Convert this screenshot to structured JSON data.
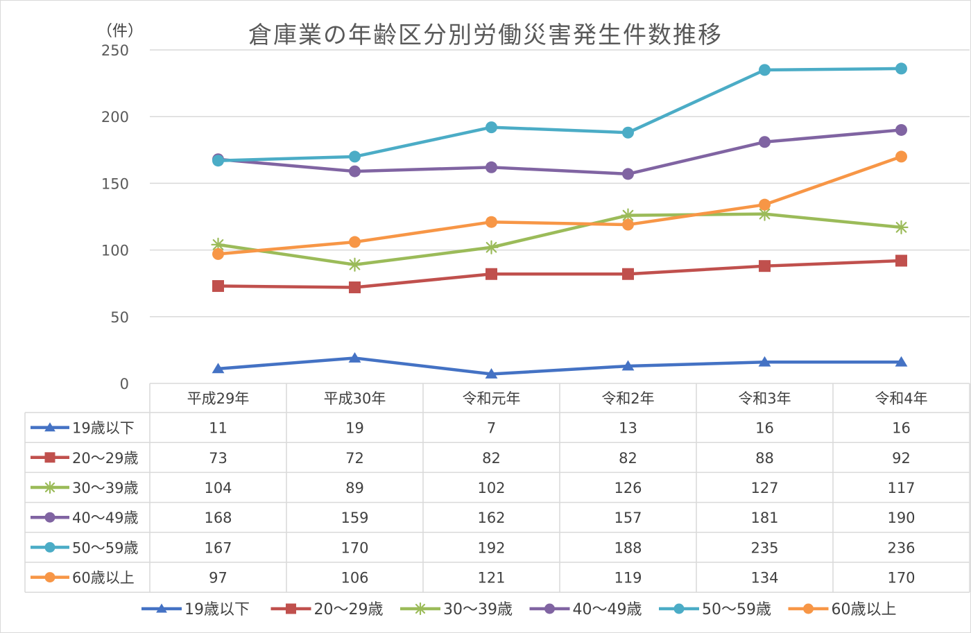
{
  "chart_data": {
    "type": "line",
    "title": "倉庫業の年齢区分別労働災害発生件数推移",
    "y_unit": "（件）",
    "ylim": [
      0,
      250
    ],
    "yticks": [
      0,
      50,
      100,
      150,
      200,
      250
    ],
    "grid": "horizontal",
    "legend_position": "bottom",
    "categories": [
      "平成29年",
      "平成30年",
      "令和元年",
      "令和2年",
      "令和3年",
      "令和4年"
    ],
    "series": [
      {
        "name": "19歳以下",
        "marker": "triangle",
        "color": "#4472c4",
        "values": [
          11,
          19,
          7,
          13,
          16,
          16
        ]
      },
      {
        "name": "20～29歳",
        "marker": "square",
        "color": "#c0504d",
        "values": [
          73,
          72,
          82,
          82,
          88,
          92
        ]
      },
      {
        "name": "30～39歳",
        "marker": "star",
        "color": "#9bbb59",
        "values": [
          104,
          89,
          102,
          126,
          127,
          117
        ]
      },
      {
        "name": "40～49歳",
        "marker": "circle",
        "color": "#8064a2",
        "values": [
          168,
          159,
          162,
          157,
          181,
          190
        ]
      },
      {
        "name": "50～59歳",
        "marker": "circle",
        "color": "#4bacc6",
        "values": [
          167,
          170,
          192,
          188,
          235,
          236
        ]
      },
      {
        "name": "60歳以上",
        "marker": "circle",
        "color": "#f79646",
        "values": [
          97,
          106,
          121,
          119,
          134,
          170
        ]
      }
    ]
  }
}
